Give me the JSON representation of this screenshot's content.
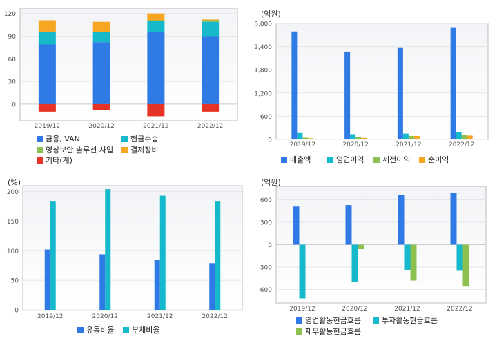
{
  "colors": {
    "blue": "#2f7ae5",
    "teal": "#16b8cc",
    "green": "#8cc152",
    "orange": "#f6a623",
    "red": "#e53425",
    "grid": "#e6e6e6",
    "axis": "#bdbdbd",
    "plot_bg_top": "#f3f4f7"
  },
  "chart_data": [
    {
      "id": "revenue-mix",
      "type": "bar",
      "stacked": true,
      "unit_label": "",
      "categories": [
        "2019/12",
        "2020/12",
        "2021/12",
        "2022/12"
      ],
      "yticks": [
        0,
        30,
        60,
        90,
        120
      ],
      "ylim": [
        -22,
        127
      ],
      "series": [
        {
          "name": "금융, VAN",
          "color": "#2f7ae5",
          "values": [
            79,
            82,
            95,
            90
          ]
        },
        {
          "name": "현금수송",
          "color": "#16b8cc",
          "values": [
            17,
            13,
            15,
            19
          ]
        },
        {
          "name": "영상보안 솔루션 사업",
          "color": "#8cc152",
          "values": [
            0,
            0,
            1,
            2
          ]
        },
        {
          "name": "결제장비",
          "color": "#f6a623",
          "values": [
            15,
            14,
            9,
            1
          ]
        },
        {
          "name": "기타(계)",
          "color": "#e53425",
          "values": [
            -10,
            -8,
            -16,
            -10
          ]
        }
      ]
    },
    {
      "id": "income",
      "type": "bar",
      "stacked": false,
      "unit_label": "(억원)",
      "categories": [
        "2019/12",
        "2020/12",
        "2021/12",
        "2022/12"
      ],
      "yticks": [
        0,
        600,
        1200,
        1800,
        2400,
        3000
      ],
      "ylim": [
        0,
        3000
      ],
      "series": [
        {
          "name": "매출액",
          "color": "#2f7ae5",
          "values": [
            2790,
            2270,
            2380,
            2900
          ]
        },
        {
          "name": "영업이익",
          "color": "#16b8cc",
          "values": [
            165,
            135,
            150,
            195
          ]
        },
        {
          "name": "세전이익",
          "color": "#8cc152",
          "values": [
            45,
            70,
            90,
            120
          ]
        },
        {
          "name": "순이익",
          "color": "#f6a623",
          "values": [
            30,
            40,
            90,
            100
          ]
        }
      ]
    },
    {
      "id": "ratios",
      "type": "bar",
      "stacked": false,
      "unit_label": "(%)",
      "categories": [
        "2019/12",
        "2020/12",
        "2021/12",
        "2022/12"
      ],
      "yticks": [
        0,
        50,
        100,
        150,
        200
      ],
      "ylim": [
        0,
        210
      ],
      "series": [
        {
          "name": "유동비율",
          "color": "#2f7ae5",
          "values": [
            102,
            94,
            84,
            79
          ]
        },
        {
          "name": "부채비율",
          "color": "#16b8cc",
          "values": [
            183,
            204,
            193,
            183
          ]
        }
      ]
    },
    {
      "id": "cashflow",
      "type": "bar",
      "stacked": false,
      "unit_label": "(억원)",
      "categories": [
        "2019/12",
        "2020/12",
        "2021/12",
        "2022/12"
      ],
      "yticks": [
        -600,
        -300,
        0,
        300,
        600
      ],
      "ylim": [
        -780,
        780
      ],
      "series": [
        {
          "name": "영업활동현금흐름",
          "color": "#2f7ae5",
          "values": [
            510,
            530,
            660,
            690
          ]
        },
        {
          "name": "투자활동현금흐름",
          "color": "#16b8cc",
          "values": [
            -720,
            -500,
            -340,
            -350
          ]
        },
        {
          "name": "재무활동현금흐름",
          "color": "#8cc152",
          "values": [
            0,
            -60,
            -480,
            -560
          ]
        }
      ]
    }
  ]
}
